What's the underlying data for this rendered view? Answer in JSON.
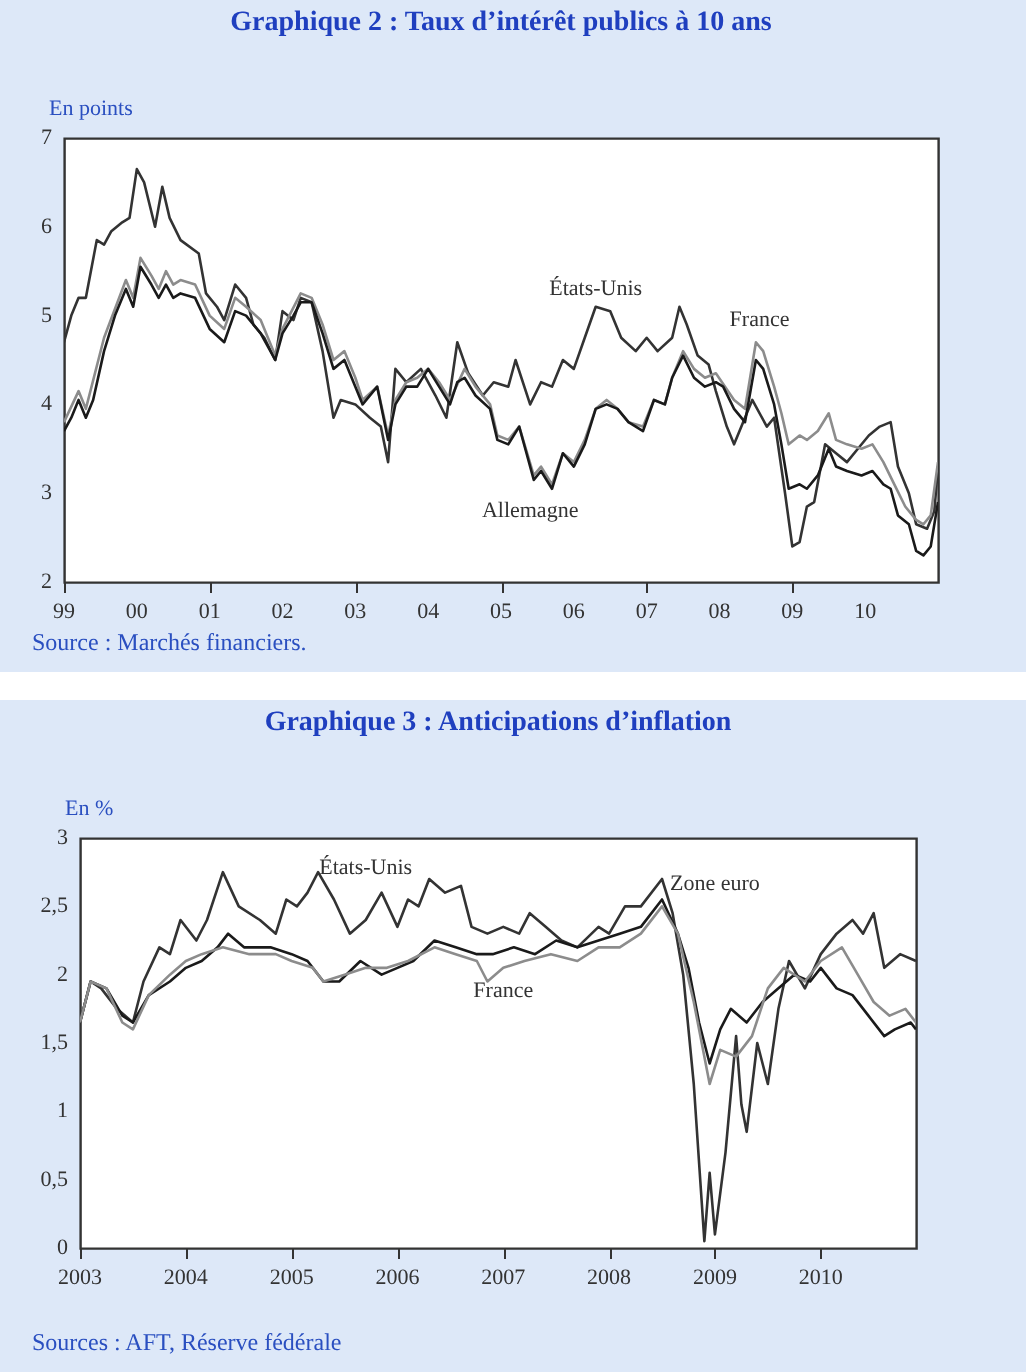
{
  "chart_data": [
    {
      "type": "line",
      "title": "Graphique 2 : Taux d’intérêt publics à 10 ans",
      "ylabel": "En points",
      "annotations": [
        "Source : Marchés financiers."
      ],
      "xlim": [
        1999,
        2011
      ],
      "xticks": [
        {
          "value": 1999,
          "label": "99"
        },
        {
          "value": 2000,
          "label": "00"
        },
        {
          "value": 2001,
          "label": "01"
        },
        {
          "value": 2002,
          "label": "02"
        },
        {
          "value": 2003,
          "label": "03"
        },
        {
          "value": 2004,
          "label": "04"
        },
        {
          "value": 2005,
          "label": "05"
        },
        {
          "value": 2006,
          "label": "06"
        },
        {
          "value": 2007,
          "label": "07"
        },
        {
          "value": 2008,
          "label": "08"
        },
        {
          "value": 2009,
          "label": "09"
        },
        {
          "value": 2010,
          "label": "10"
        }
      ],
      "ylim": [
        2,
        7
      ],
      "yticks": [
        2,
        3,
        4,
        5,
        6,
        7
      ],
      "legend": false,
      "grid": false,
      "series": [
        {
          "name": "États-Unis",
          "color": "#333333",
          "x": [
            1999.0,
            1999.1,
            1999.2,
            1999.3,
            1999.45,
            1999.55,
            1999.65,
            1999.8,
            1999.9,
            2000.0,
            2000.1,
            2000.25,
            2000.35,
            2000.45,
            2000.6,
            2000.85,
            2000.95,
            2001.1,
            2001.2,
            2001.35,
            2001.5,
            2001.6,
            2001.75,
            2001.9,
            2002.0,
            2002.15,
            2002.25,
            2002.4,
            2002.55,
            2002.7,
            2002.8,
            2003.0,
            2003.2,
            2003.35,
            2003.45,
            2003.55,
            2003.7,
            2003.9,
            2004.1,
            2004.25,
            2004.4,
            2004.55,
            2004.75,
            2004.9,
            2005.1,
            2005.2,
            2005.4,
            2005.55,
            2005.7,
            2005.85,
            2006.0,
            2006.15,
            2006.3,
            2006.5,
            2006.65,
            2006.85,
            2007.0,
            2007.15,
            2007.35,
            2007.45,
            2007.55,
            2007.7,
            2007.85,
            2007.95,
            2008.1,
            2008.2,
            2008.35,
            2008.45,
            2008.65,
            2008.75,
            2008.9,
            2009.0,
            2009.1,
            2009.2,
            2009.3,
            2009.45,
            2009.6,
            2009.75,
            2009.9,
            2010.05,
            2010.2,
            2010.35,
            2010.45,
            2010.6,
            2010.7,
            2010.85,
            2010.95,
            2011.0
          ],
          "values": [
            4.7,
            5.0,
            5.2,
            5.2,
            5.85,
            5.8,
            5.95,
            6.05,
            6.1,
            6.65,
            6.5,
            6.0,
            6.45,
            6.1,
            5.85,
            5.7,
            5.25,
            5.1,
            4.95,
            5.35,
            5.2,
            4.9,
            4.75,
            4.5,
            5.05,
            4.95,
            5.2,
            5.15,
            4.6,
            3.85,
            4.05,
            4.0,
            3.85,
            3.75,
            3.35,
            4.4,
            4.25,
            4.4,
            4.1,
            3.85,
            4.7,
            4.35,
            4.1,
            4.25,
            4.2,
            4.5,
            4.0,
            4.25,
            4.2,
            4.5,
            4.4,
            4.75,
            5.1,
            5.05,
            4.75,
            4.6,
            4.75,
            4.6,
            4.75,
            5.1,
            4.9,
            4.55,
            4.45,
            4.15,
            3.75,
            3.55,
            3.85,
            4.05,
            3.75,
            3.85,
            3.0,
            2.4,
            2.45,
            2.85,
            2.9,
            3.55,
            3.45,
            3.35,
            3.5,
            3.65,
            3.75,
            3.8,
            3.3,
            3.0,
            2.65,
            2.6,
            2.8,
            3.3
          ]
        },
        {
          "name": "France",
          "color": "#8c8c8c",
          "x": [
            1999.0,
            1999.2,
            1999.3,
            1999.55,
            1999.85,
            1999.95,
            2000.05,
            2000.2,
            2000.3,
            2000.4,
            2000.5,
            2000.6,
            2000.8,
            2001.0,
            2001.2,
            2001.35,
            2001.5,
            2001.7,
            2001.9,
            2002.0,
            2002.25,
            2002.4,
            2002.55,
            2002.7,
            2002.85,
            2003.0,
            2003.1,
            2003.3,
            2003.45,
            2003.55,
            2003.7,
            2003.85,
            2004.0,
            2004.15,
            2004.3,
            2004.5,
            2004.65,
            2004.85,
            2004.95,
            2005.1,
            2005.25,
            2005.45,
            2005.55,
            2005.7,
            2005.85,
            2006.0,
            2006.15,
            2006.3,
            2006.45,
            2006.6,
            2006.75,
            2006.95,
            2007.1,
            2007.25,
            2007.35,
            2007.5,
            2007.65,
            2007.8,
            2007.95,
            2008.2,
            2008.35,
            2008.5,
            2008.6,
            2008.75,
            2008.85,
            2008.95,
            2009.1,
            2009.2,
            2009.35,
            2009.5,
            2009.6,
            2009.75,
            2009.95,
            2010.1,
            2010.25,
            2010.4,
            2010.55,
            2010.7,
            2010.8,
            2010.9,
            2011.0
          ],
          "values": [
            3.8,
            4.15,
            3.95,
            4.75,
            5.4,
            5.2,
            5.65,
            5.45,
            5.3,
            5.5,
            5.35,
            5.4,
            5.35,
            5.0,
            4.85,
            5.2,
            5.1,
            4.95,
            4.55,
            4.85,
            5.25,
            5.2,
            4.9,
            4.5,
            4.6,
            4.3,
            4.05,
            4.2,
            3.65,
            4.05,
            4.25,
            4.3,
            4.4,
            4.25,
            4.05,
            4.4,
            4.2,
            4.0,
            3.65,
            3.6,
            3.75,
            3.2,
            3.3,
            3.1,
            3.45,
            3.35,
            3.6,
            3.95,
            4.05,
            3.95,
            3.8,
            3.75,
            4.05,
            4.0,
            4.3,
            4.6,
            4.4,
            4.3,
            4.35,
            4.05,
            3.95,
            4.7,
            4.6,
            4.2,
            3.9,
            3.55,
            3.65,
            3.6,
            3.7,
            3.9,
            3.6,
            3.55,
            3.5,
            3.55,
            3.35,
            3.1,
            2.85,
            2.7,
            2.65,
            2.75,
            3.35
          ]
        },
        {
          "name": "Allemagne",
          "color": "#1a1a1a",
          "x": [
            1999.0,
            1999.1,
            1999.2,
            1999.3,
            1999.4,
            1999.55,
            1999.7,
            1999.85,
            1999.95,
            2000.05,
            2000.2,
            2000.3,
            2000.4,
            2000.5,
            2000.6,
            2000.8,
            2001.0,
            2001.2,
            2001.35,
            2001.5,
            2001.7,
            2001.9,
            2002.0,
            2002.15,
            2002.25,
            2002.4,
            2002.55,
            2002.7,
            2002.85,
            2003.0,
            2003.1,
            2003.3,
            2003.45,
            2003.55,
            2003.7,
            2003.85,
            2004.0,
            2004.15,
            2004.3,
            2004.4,
            2004.5,
            2004.65,
            2004.85,
            2004.95,
            2005.1,
            2005.25,
            2005.35,
            2005.45,
            2005.55,
            2005.7,
            2005.85,
            2006.0,
            2006.15,
            2006.3,
            2006.45,
            2006.6,
            2006.75,
            2006.95,
            2007.1,
            2007.25,
            2007.35,
            2007.5,
            2007.65,
            2007.8,
            2007.95,
            2008.05,
            2008.2,
            2008.35,
            2008.5,
            2008.6,
            2008.75,
            2008.85,
            2008.95,
            2009.1,
            2009.2,
            2009.35,
            2009.5,
            2009.6,
            2009.75,
            2009.95,
            2010.1,
            2010.25,
            2010.35,
            2010.45,
            2010.6,
            2010.7,
            2010.8,
            2010.9,
            2011.0
          ],
          "values": [
            3.7,
            3.85,
            4.05,
            3.85,
            4.05,
            4.6,
            5.0,
            5.3,
            5.1,
            5.55,
            5.35,
            5.2,
            5.35,
            5.2,
            5.25,
            5.2,
            4.85,
            4.7,
            5.05,
            5.0,
            4.8,
            4.5,
            4.8,
            5.0,
            5.15,
            5.15,
            4.8,
            4.4,
            4.5,
            4.2,
            4.0,
            4.2,
            3.6,
            4.0,
            4.2,
            4.2,
            4.4,
            4.2,
            4.0,
            4.25,
            4.3,
            4.1,
            3.95,
            3.6,
            3.55,
            3.75,
            3.45,
            3.15,
            3.25,
            3.05,
            3.45,
            3.3,
            3.55,
            3.95,
            4.0,
            3.95,
            3.8,
            3.7,
            4.05,
            4.0,
            4.3,
            4.55,
            4.3,
            4.2,
            4.25,
            4.2,
            3.95,
            3.8,
            4.5,
            4.4,
            4.0,
            3.55,
            3.05,
            3.1,
            3.05,
            3.2,
            3.5,
            3.3,
            3.25,
            3.2,
            3.25,
            3.1,
            3.05,
            2.75,
            2.65,
            2.35,
            2.3,
            2.4,
            2.9
          ]
        }
      ]
    },
    {
      "type": "line",
      "title": "Graphique 3 : Anticipations d’inflation",
      "ylabel": "En %",
      "annotations": [
        "Sources : AFT, Réserve fédérale"
      ],
      "xlim": [
        2003,
        2010.9
      ],
      "xticks": [
        2003,
        2004,
        2005,
        2006,
        2007,
        2008,
        2009,
        2010
      ],
      "ylim": [
        0,
        3
      ],
      "yticks": [
        0,
        {
          "value": 0.5,
          "label": "0,5"
        },
        1,
        {
          "value": 1.5,
          "label": "1,5"
        },
        2,
        {
          "value": 2.5,
          "label": "2,5"
        },
        3
      ],
      "legend": false,
      "grid": false,
      "series": [
        {
          "name": "États-Unis",
          "color": "#333333",
          "x": [
            2003.0,
            2003.1,
            2003.2,
            2003.35,
            2003.5,
            2003.6,
            2003.75,
            2003.85,
            2003.95,
            2004.1,
            2004.2,
            2004.35,
            2004.5,
            2004.7,
            2004.85,
            2004.95,
            2005.05,
            2005.15,
            2005.25,
            2005.4,
            2005.55,
            2005.7,
            2005.85,
            2006.0,
            2006.1,
            2006.2,
            2006.3,
            2006.45,
            2006.6,
            2006.7,
            2006.85,
            2007.0,
            2007.15,
            2007.25,
            2007.4,
            2007.55,
            2007.7,
            2007.9,
            2008.0,
            2008.15,
            2008.3,
            2008.5,
            2008.6,
            2008.7,
            2008.8,
            2008.9,
            2008.95,
            2009.0,
            2009.1,
            2009.2,
            2009.25,
            2009.3,
            2009.4,
            2009.5,
            2009.6,
            2009.7,
            2009.85,
            2010.0,
            2010.15,
            2010.3,
            2010.4,
            2010.5,
            2010.6,
            2010.75,
            2010.9
          ],
          "values": [
            1.65,
            1.95,
            1.9,
            1.75,
            1.65,
            1.95,
            2.2,
            2.15,
            2.4,
            2.25,
            2.4,
            2.75,
            2.5,
            2.4,
            2.3,
            2.55,
            2.5,
            2.6,
            2.75,
            2.55,
            2.3,
            2.4,
            2.6,
            2.35,
            2.55,
            2.5,
            2.7,
            2.6,
            2.65,
            2.35,
            2.3,
            2.35,
            2.3,
            2.45,
            2.35,
            2.25,
            2.2,
            2.35,
            2.3,
            2.5,
            2.5,
            2.7,
            2.45,
            2.0,
            1.2,
            0.05,
            0.55,
            0.1,
            0.7,
            1.55,
            1.05,
            0.85,
            1.5,
            1.2,
            1.75,
            2.1,
            1.9,
            2.15,
            2.3,
            2.4,
            2.3,
            2.45,
            2.05,
            2.15,
            2.1
          ]
        },
        {
          "name": "Zone euro",
          "color": "#1a1a1a",
          "x": [
            2003.0,
            2003.1,
            2003.25,
            2003.4,
            2003.5,
            2003.65,
            2003.85,
            2004.0,
            2004.15,
            2004.3,
            2004.4,
            2004.55,
            2004.8,
            2005.0,
            2005.15,
            2005.3,
            2005.45,
            2005.65,
            2005.85,
            2006.0,
            2006.15,
            2006.35,
            2006.55,
            2006.75,
            2006.9,
            2007.1,
            2007.3,
            2007.5,
            2007.7,
            2007.9,
            2008.1,
            2008.3,
            2008.5,
            2008.65,
            2008.75,
            2008.85,
            2008.95,
            2009.05,
            2009.15,
            2009.3,
            2009.45,
            2009.6,
            2009.75,
            2009.9,
            2010.0,
            2010.15,
            2010.3,
            2010.45,
            2010.6,
            2010.7,
            2010.85,
            2010.9
          ],
          "values": [
            1.65,
            1.95,
            1.9,
            1.7,
            1.65,
            1.85,
            1.95,
            2.05,
            2.1,
            2.2,
            2.3,
            2.2,
            2.2,
            2.15,
            2.1,
            1.95,
            1.95,
            2.1,
            2.0,
            2.05,
            2.1,
            2.25,
            2.2,
            2.15,
            2.15,
            2.2,
            2.15,
            2.25,
            2.2,
            2.25,
            2.3,
            2.35,
            2.55,
            2.3,
            2.05,
            1.65,
            1.35,
            1.6,
            1.75,
            1.65,
            1.8,
            1.9,
            2.0,
            1.95,
            2.05,
            1.9,
            1.85,
            1.7,
            1.55,
            1.6,
            1.65,
            1.6
          ]
        },
        {
          "name": "France",
          "color": "#8c8c8c",
          "x": [
            2003.0,
            2003.1,
            2003.25,
            2003.4,
            2003.5,
            2003.65,
            2003.85,
            2004.0,
            2004.15,
            2004.35,
            2004.6,
            2004.85,
            2005.0,
            2005.2,
            2005.3,
            2005.5,
            2005.7,
            2005.9,
            2006.1,
            2006.35,
            2006.55,
            2006.75,
            2006.85,
            2007.0,
            2007.2,
            2007.45,
            2007.7,
            2007.9,
            2008.1,
            2008.3,
            2008.5,
            2008.65,
            2008.8,
            2008.95,
            2009.05,
            2009.2,
            2009.35,
            2009.5,
            2009.65,
            2009.85,
            2010.0,
            2010.2,
            2010.35,
            2010.5,
            2010.65,
            2010.8,
            2010.9
          ],
          "values": [
            1.65,
            1.95,
            1.9,
            1.65,
            1.6,
            1.85,
            2.0,
            2.1,
            2.15,
            2.2,
            2.15,
            2.15,
            2.1,
            2.05,
            1.95,
            2.0,
            2.05,
            2.05,
            2.1,
            2.2,
            2.15,
            2.1,
            1.95,
            2.05,
            2.1,
            2.15,
            2.1,
            2.2,
            2.2,
            2.3,
            2.5,
            2.3,
            1.8,
            1.2,
            1.45,
            1.4,
            1.55,
            1.9,
            2.05,
            1.95,
            2.1,
            2.2,
            2.0,
            1.8,
            1.7,
            1.75,
            1.65
          ]
        }
      ]
    }
  ]
}
